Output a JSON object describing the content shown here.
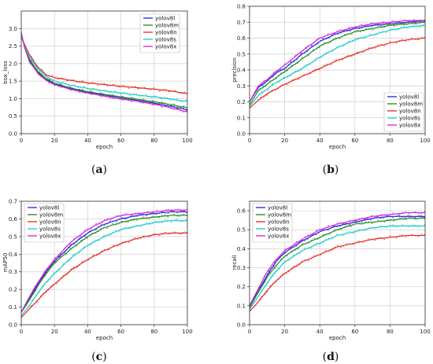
{
  "colors": {
    "yolov8l": "#1f1fe0",
    "yolov8m": "#1a8a1a",
    "yolov8n": "#e8241b",
    "yolov8s": "#14c8c8",
    "yolov8x": "#d21fd2"
  },
  "chart_data": [
    {
      "panel_label": "a",
      "type": "line",
      "xlabel": "epoch",
      "ylabel": "box_loss",
      "xlim": [
        0,
        100
      ],
      "ylim": [
        0,
        3.5
      ],
      "xticks": [
        "0",
        "20",
        "40",
        "60",
        "80",
        "100"
      ],
      "yticks": [
        "0.0",
        "0.5",
        "1.0",
        "1.5",
        "2.0",
        "2.5",
        "3.0"
      ],
      "legend": "top-right",
      "grid": true,
      "x": [
        0,
        2,
        5,
        10,
        15,
        20,
        30,
        40,
        50,
        60,
        70,
        80,
        90,
        95,
        100
      ],
      "series": [
        {
          "name": "yolov8l",
          "values": [
            2.85,
            2.5,
            2.1,
            1.75,
            1.55,
            1.42,
            1.28,
            1.18,
            1.1,
            1.02,
            0.95,
            0.87,
            0.78,
            0.73,
            0.68
          ]
        },
        {
          "name": "yolov8m",
          "values": [
            2.85,
            2.5,
            2.12,
            1.77,
            1.57,
            1.44,
            1.3,
            1.2,
            1.12,
            1.05,
            0.98,
            0.91,
            0.83,
            0.78,
            0.74
          ]
        },
        {
          "name": "yolov8n",
          "values": [
            2.75,
            2.55,
            2.25,
            1.9,
            1.68,
            1.6,
            1.52,
            1.45,
            1.4,
            1.35,
            1.31,
            1.27,
            1.22,
            1.18,
            1.14
          ]
        },
        {
          "name": "yolov8s",
          "values": [
            2.75,
            2.5,
            2.18,
            1.85,
            1.63,
            1.5,
            1.38,
            1.29,
            1.22,
            1.16,
            1.1,
            1.05,
            0.99,
            0.95,
            0.92
          ]
        },
        {
          "name": "yolov8x",
          "values": [
            2.9,
            2.45,
            2.05,
            1.72,
            1.52,
            1.4,
            1.26,
            1.16,
            1.07,
            0.99,
            0.92,
            0.84,
            0.74,
            0.68,
            0.62
          ]
        }
      ]
    },
    {
      "panel_label": "b",
      "type": "line",
      "xlabel": "epoch",
      "ylabel": "precision",
      "xlim": [
        0,
        100
      ],
      "ylim": [
        0,
        0.8
      ],
      "xticks": [
        "0",
        "20",
        "40",
        "60",
        "80",
        "100"
      ],
      "yticks": [
        "0.0",
        "0.1",
        "0.2",
        "0.3",
        "0.4",
        "0.5",
        "0.6",
        "0.7",
        "0.8"
      ],
      "legend": "bottom-right",
      "grid": true,
      "x": [
        0,
        5,
        10,
        15,
        20,
        30,
        40,
        50,
        60,
        70,
        80,
        90,
        100
      ],
      "series": [
        {
          "name": "yolov8l",
          "values": [
            0.2,
            0.29,
            0.33,
            0.38,
            0.41,
            0.5,
            0.58,
            0.63,
            0.66,
            0.68,
            0.69,
            0.7,
            0.71
          ]
        },
        {
          "name": "yolov8m",
          "values": [
            0.18,
            0.27,
            0.31,
            0.35,
            0.39,
            0.47,
            0.55,
            0.6,
            0.64,
            0.66,
            0.68,
            0.69,
            0.7
          ]
        },
        {
          "name": "yolov8n",
          "values": [
            0.16,
            0.21,
            0.25,
            0.28,
            0.31,
            0.36,
            0.41,
            0.46,
            0.5,
            0.54,
            0.57,
            0.59,
            0.6
          ]
        },
        {
          "name": "yolov8s",
          "values": [
            0.17,
            0.24,
            0.28,
            0.32,
            0.35,
            0.41,
            0.48,
            0.54,
            0.59,
            0.62,
            0.65,
            0.67,
            0.68
          ]
        },
        {
          "name": "yolov8x",
          "values": [
            0.2,
            0.3,
            0.34,
            0.39,
            0.43,
            0.52,
            0.6,
            0.64,
            0.67,
            0.69,
            0.7,
            0.71,
            0.71
          ]
        }
      ]
    },
    {
      "panel_label": "c",
      "type": "line",
      "xlabel": "epoch",
      "ylabel": "mAP50",
      "xlim": [
        0,
        100
      ],
      "ylim": [
        0,
        0.7
      ],
      "xticks": [
        "0",
        "20",
        "40",
        "60",
        "80",
        "100"
      ],
      "yticks": [
        "0.0",
        "0.1",
        "0.2",
        "0.3",
        "0.4",
        "0.5",
        "0.6",
        "0.7"
      ],
      "legend": "top-left",
      "grid": true,
      "x": [
        0,
        5,
        10,
        15,
        20,
        30,
        40,
        50,
        60,
        70,
        80,
        90,
        100
      ],
      "series": [
        {
          "name": "yolov8l",
          "values": [
            0.07,
            0.15,
            0.23,
            0.3,
            0.36,
            0.45,
            0.52,
            0.57,
            0.6,
            0.62,
            0.63,
            0.64,
            0.64
          ]
        },
        {
          "name": "yolov8m",
          "values": [
            0.07,
            0.14,
            0.22,
            0.29,
            0.35,
            0.43,
            0.5,
            0.55,
            0.58,
            0.6,
            0.61,
            0.62,
            0.62
          ]
        },
        {
          "name": "yolov8n",
          "values": [
            0.04,
            0.09,
            0.14,
            0.19,
            0.23,
            0.31,
            0.37,
            0.42,
            0.46,
            0.49,
            0.51,
            0.52,
            0.52
          ]
        },
        {
          "name": "yolov8s",
          "values": [
            0.05,
            0.11,
            0.18,
            0.24,
            0.29,
            0.38,
            0.45,
            0.5,
            0.54,
            0.56,
            0.58,
            0.59,
            0.59
          ]
        },
        {
          "name": "yolov8x",
          "values": [
            0.07,
            0.16,
            0.24,
            0.31,
            0.37,
            0.47,
            0.54,
            0.59,
            0.62,
            0.63,
            0.64,
            0.65,
            0.65
          ]
        }
      ]
    },
    {
      "panel_label": "d",
      "type": "line",
      "xlabel": "epoch",
      "ylabel": "recall",
      "xlim": [
        0,
        100
      ],
      "ylim": [
        0,
        0.65
      ],
      "xticks": [
        "0",
        "20",
        "40",
        "60",
        "80",
        "100"
      ],
      "yticks": [
        "0.0",
        "0.1",
        "0.2",
        "0.3",
        "0.4",
        "0.5",
        "0.6"
      ],
      "legend": "top-left",
      "grid": true,
      "x": [
        0,
        5,
        10,
        15,
        20,
        30,
        40,
        50,
        60,
        70,
        80,
        90,
        100
      ],
      "series": [
        {
          "name": "yolov8l",
          "values": [
            0.1,
            0.18,
            0.26,
            0.33,
            0.38,
            0.44,
            0.49,
            0.52,
            0.54,
            0.56,
            0.57,
            0.57,
            0.57
          ]
        },
        {
          "name": "yolov8m",
          "values": [
            0.09,
            0.17,
            0.25,
            0.31,
            0.36,
            0.42,
            0.46,
            0.5,
            0.53,
            0.54,
            0.55,
            0.56,
            0.56
          ]
        },
        {
          "name": "yolov8n",
          "values": [
            0.07,
            0.12,
            0.18,
            0.23,
            0.27,
            0.33,
            0.37,
            0.41,
            0.43,
            0.45,
            0.46,
            0.47,
            0.47
          ]
        },
        {
          "name": "yolov8s",
          "values": [
            0.08,
            0.15,
            0.22,
            0.28,
            0.33,
            0.39,
            0.43,
            0.47,
            0.49,
            0.51,
            0.52,
            0.52,
            0.52
          ]
        },
        {
          "name": "yolov8x",
          "values": [
            0.1,
            0.19,
            0.28,
            0.34,
            0.39,
            0.45,
            0.5,
            0.53,
            0.55,
            0.57,
            0.58,
            0.59,
            0.59
          ]
        }
      ]
    }
  ]
}
